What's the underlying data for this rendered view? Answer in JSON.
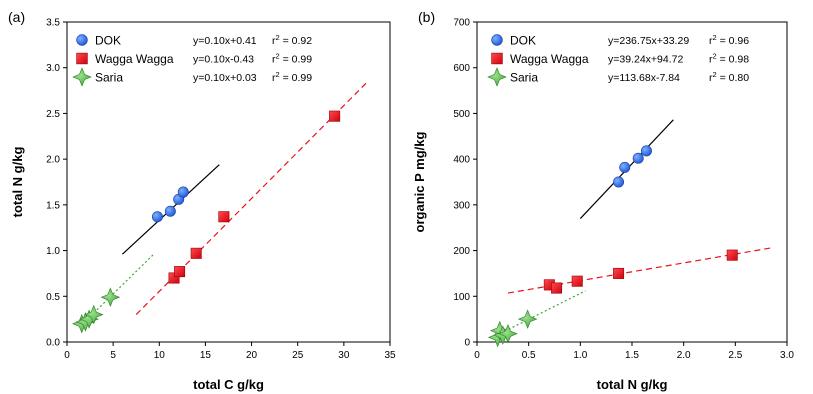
{
  "chart_data": [
    {
      "type": "scatter",
      "panel_label": "(a)",
      "xlabel": "total C g/kg",
      "ylabel": "total N g/kg",
      "xlim": [
        0,
        35
      ],
      "ylim": [
        0,
        3.5
      ],
      "x_ticks": [
        "0",
        "5",
        "10",
        "15",
        "20",
        "25",
        "30",
        "35"
      ],
      "y_ticks": [
        "0.0",
        "0.5",
        "1.0",
        "1.5",
        "2.0",
        "2.5",
        "3.0",
        "3.5"
      ],
      "legend_position": "top-left",
      "series": [
        {
          "name": "DOK",
          "marker": "circle",
          "color": "#2f6fe6",
          "equation": "y=0.10x+0.41",
          "r2": "0.92",
          "fit_color": "#000000",
          "fit_dash": "solid",
          "fit_x": [
            6,
            16.5
          ],
          "fit_y": [
            0.96,
            1.94
          ],
          "x": [
            9.8,
            11.2,
            12.1,
            12.6
          ],
          "y": [
            1.37,
            1.43,
            1.56,
            1.64
          ]
        },
        {
          "name": "Wagga Wagga",
          "marker": "square",
          "color": "#e8121b",
          "equation": "y=0.10x-0.43",
          "r2": "0.99",
          "fit_color": "#e8121b",
          "fit_dash": "dashed",
          "fit_x": [
            7.5,
            32.5
          ],
          "fit_y": [
            0.3,
            2.84
          ],
          "x": [
            11.6,
            12.2,
            14.0,
            17.0,
            29.0
          ],
          "y": [
            0.7,
            0.77,
            0.97,
            1.37,
            2.47
          ]
        },
        {
          "name": "Saria",
          "marker": "star4",
          "color": "#5cbf4a",
          "equation": "y=0.10x+0.03",
          "r2": "0.99",
          "fit_color": "#3aa630",
          "fit_dash": "dotted",
          "fit_x": [
            1.5,
            9.5
          ],
          "fit_y": [
            0.18,
            0.97
          ],
          "x": [
            1.6,
            2.0,
            2.4,
            2.9,
            4.7
          ],
          "y": [
            0.2,
            0.22,
            0.25,
            0.3,
            0.49
          ]
        }
      ]
    },
    {
      "type": "scatter",
      "panel_label": "(b)",
      "xlabel": "total N g/kg",
      "ylabel": "organic P mg/kg",
      "xlim": [
        0,
        3.0
      ],
      "ylim": [
        0,
        700
      ],
      "x_ticks": [
        "0",
        "0.5",
        "1.0",
        "1.5",
        "2.0",
        "2.5",
        "3.0"
      ],
      "y_ticks": [
        "0",
        "100",
        "200",
        "300",
        "400",
        "500",
        "600",
        "700"
      ],
      "legend_position": "top-left",
      "series": [
        {
          "name": "DOK",
          "marker": "circle",
          "color": "#2f6fe6",
          "equation": "y=236.75x+33.29",
          "r2": "0.96",
          "fit_color": "#000000",
          "fit_dash": "solid",
          "fit_x": [
            1.0,
            1.9
          ],
          "fit_y": [
            270,
            486
          ],
          "x": [
            1.37,
            1.43,
            1.56,
            1.64
          ],
          "y": [
            350,
            382,
            402,
            418
          ]
        },
        {
          "name": "Wagga Wagga",
          "marker": "square",
          "color": "#e8121b",
          "equation": "y=39.24x+94.72",
          "r2": "0.98",
          "fit_color": "#e8121b",
          "fit_dash": "dashed",
          "fit_x": [
            0.3,
            2.85
          ],
          "fit_y": [
            107,
            206
          ],
          "x": [
            0.7,
            0.77,
            0.97,
            1.37,
            2.47
          ],
          "y": [
            125,
            118,
            133,
            150,
            190
          ]
        },
        {
          "name": "Saria",
          "marker": "star4",
          "color": "#5cbf4a",
          "equation": "y=113.68x-7.84",
          "r2": "0.80",
          "fit_color": "#3aa630",
          "fit_dash": "dotted",
          "fit_x": [
            0.15,
            1.05
          ],
          "fit_y": [
            10,
            112
          ],
          "x": [
            0.2,
            0.22,
            0.25,
            0.3,
            0.49
          ],
          "y": [
            10,
            25,
            15,
            18,
            50
          ]
        }
      ]
    }
  ]
}
